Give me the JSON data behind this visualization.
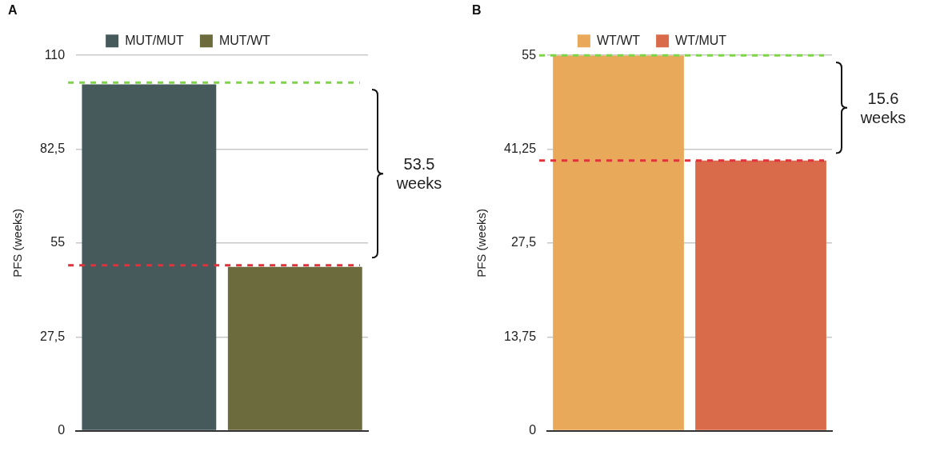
{
  "chart_data": [
    {
      "type": "bar",
      "title": "A",
      "ylabel": "PFS (weeks)",
      "categories": [
        null,
        null
      ],
      "series": [
        {
          "name": "MUT/MUT",
          "color": "#465a5c",
          "values": [
            101.5,
            null
          ]
        },
        {
          "name": "MUT/WT",
          "color": "#6b6b3d",
          "values": [
            null,
            48
          ]
        }
      ],
      "ylim": [
        0,
        110
      ],
      "yticks": [
        0,
        {
          "value": 27.5,
          "label": "27,5"
        },
        55,
        {
          "value": 82.5,
          "label": "82,5"
        },
        110
      ],
      "grid": "y",
      "legend": "top",
      "ref_lines": [
        {
          "axis": "y",
          "value": 102,
          "color": "#7ed348",
          "line_style": "dashed"
        },
        {
          "axis": "y",
          "value": 48.5,
          "color": "#e0323a",
          "line_style": "dashed"
        }
      ],
      "annotations": [
        "53.5 weeks"
      ]
    },
    {
      "type": "bar",
      "title": "B",
      "ylabel": "PFS (weeks)",
      "categories": [
        null,
        null
      ],
      "series": [
        {
          "name": "WT/WT",
          "color": "#e9a95a",
          "values": [
            55,
            null
          ]
        },
        {
          "name": "WT/MUT",
          "color": "#d96b4b",
          "values": [
            null,
            39.6
          ]
        }
      ],
      "ylim": [
        0,
        55
      ],
      "yticks": [
        0,
        {
          "value": 13.75,
          "label": "13,75"
        },
        {
          "value": 27.5,
          "label": "27,5"
        },
        {
          "value": 41.25,
          "label": "41,25"
        },
        55
      ],
      "grid": "y",
      "legend": "top",
      "ref_lines": [
        {
          "axis": "y",
          "value": 55,
          "color": "#7ed348",
          "line_style": "dashed"
        },
        {
          "axis": "y",
          "value": 39.6,
          "color": "#e0323a",
          "line_style": "dashed"
        }
      ],
      "annotations": [
        "15.6 weeks"
      ]
    }
  ]
}
